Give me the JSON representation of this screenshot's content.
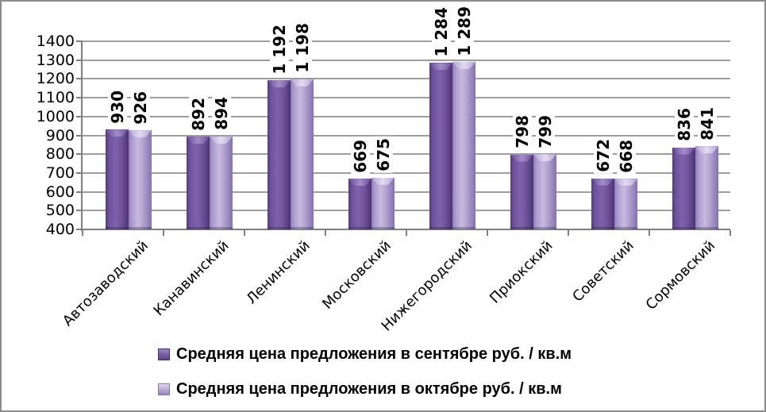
{
  "window": {
    "background": "#ffffff",
    "border_color": "#8c8c8c"
  },
  "chart_data": {
    "type": "bar",
    "title": "",
    "categories": [
      "Автозаводский",
      "Канавинский",
      "Ленинский",
      "Московский",
      "Нижегородский",
      "Приокский",
      "Советский",
      "Сормовский"
    ],
    "series": [
      {
        "name": "Средняя цена предложения в сентябре руб. / кв.м",
        "values": [
          930,
          892,
          1192,
          669,
          1284,
          798,
          672,
          836
        ],
        "value_labels": [
          "930",
          "892",
          "1 192",
          "669",
          "1 284",
          "798",
          "672",
          "836"
        ],
        "color": "#6f549e"
      },
      {
        "name": "Средняя цена предложения в октябре руб. / кв.м",
        "values": [
          926,
          894,
          1198,
          675,
          1289,
          799,
          668,
          841
        ],
        "value_labels": [
          "926",
          "894",
          "1 198",
          "675",
          "1 289",
          "799",
          "668",
          "841"
        ],
        "color": "#a99aca"
      }
    ],
    "ylim": [
      400,
      1400
    ],
    "ytick_step": 100,
    "yticks": [
      "400",
      "500",
      "600",
      "700",
      "800",
      "900",
      "1000",
      "1100",
      "1200",
      "1300",
      "1400"
    ],
    "xlabel": "",
    "ylabel": "",
    "grid": true,
    "legend_position": "bottom",
    "value_label_rotation": -90,
    "category_label_rotation": -45,
    "gridline_color": "#9d9d9d",
    "axis_color": "#7f7f7f"
  }
}
